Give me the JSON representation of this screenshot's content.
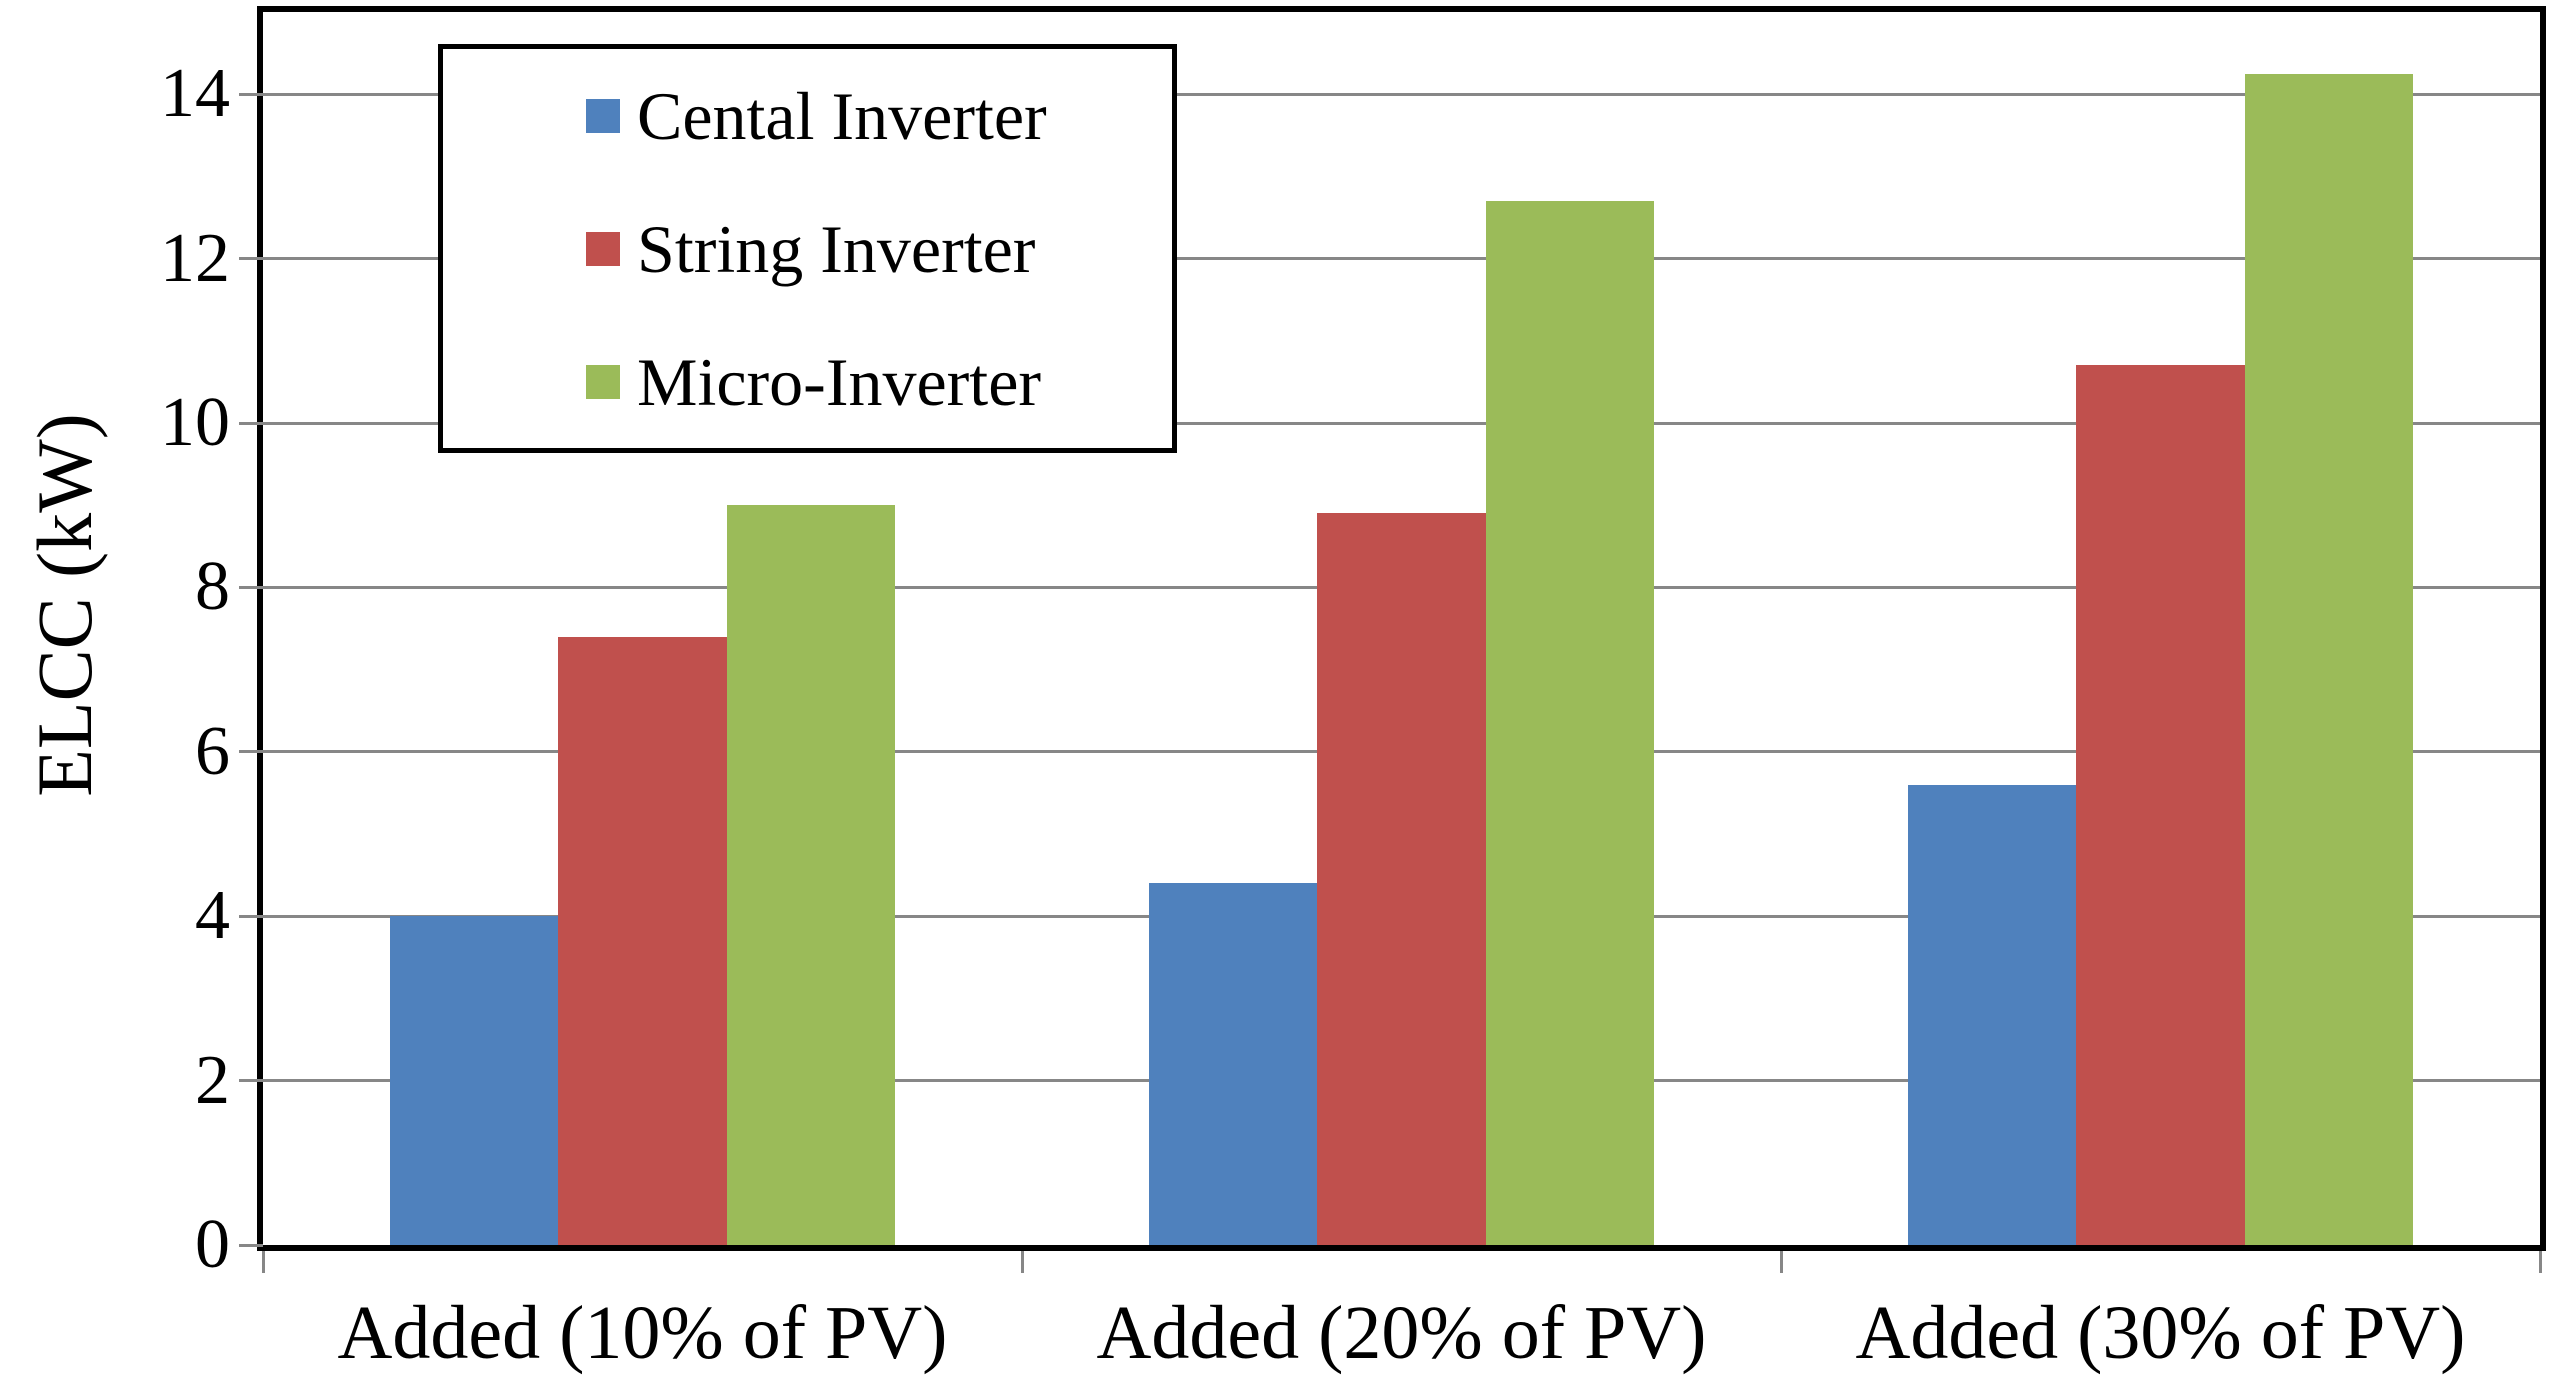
{
  "chart_data": {
    "type": "bar",
    "title": "",
    "xlabel": "",
    "ylabel": "ELCC (kW)",
    "categories": [
      "Added (10% of PV)",
      "Added (20% of PV)",
      "Added (30% of PV)"
    ],
    "series": [
      {
        "name": "Cental Inverter",
        "color": "#4F81BD",
        "values": [
          4.0,
          4.4,
          5.6
        ]
      },
      {
        "name": "String Inverter",
        "color": "#C0504D",
        "values": [
          7.4,
          8.9,
          10.7
        ]
      },
      {
        "name": "Micro-Inverter",
        "color": "#9BBB59",
        "values": [
          9.0,
          12.7,
          14.25
        ]
      }
    ],
    "ylim": [
      0,
      15
    ],
    "yticks": [
      0,
      2,
      4,
      6,
      8,
      10,
      12,
      14
    ],
    "grid": true,
    "legend_position": "top-left",
    "colors": {
      "gridline": "#878787",
      "axis": "#000000",
      "background": "#FFFFFF"
    }
  }
}
